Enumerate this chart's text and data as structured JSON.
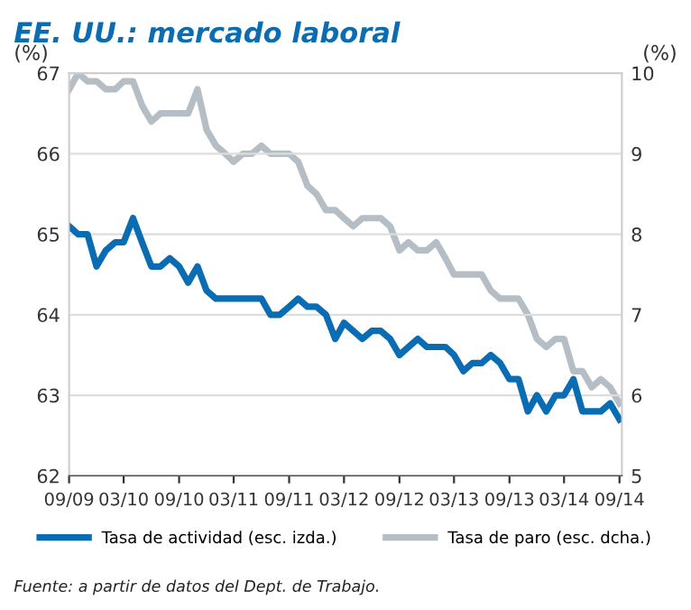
{
  "chart_data": {
    "type": "line",
    "title": "EE. UU.: mercado laboral",
    "ylabel": "(%)",
    "y2label": "(%)",
    "annotations": [
      "Fuente: a partir de datos del Dept. de Trabajo."
    ],
    "x": [
      "2009-09",
      "2009-10",
      "2009-11",
      "2009-12",
      "2010-01",
      "2010-02",
      "2010-03",
      "2010-04",
      "2010-05",
      "2010-06",
      "2010-07",
      "2010-08",
      "2010-09",
      "2010-10",
      "2010-11",
      "2010-12",
      "2011-01",
      "2011-02",
      "2011-03",
      "2011-04",
      "2011-05",
      "2011-06",
      "2011-07",
      "2011-08",
      "2011-09",
      "2011-10",
      "2011-11",
      "2011-12",
      "2012-01",
      "2012-02",
      "2012-03",
      "2012-04",
      "2012-05",
      "2012-06",
      "2012-07",
      "2012-08",
      "2012-09",
      "2012-10",
      "2012-11",
      "2012-12",
      "2013-01",
      "2013-02",
      "2013-03",
      "2013-04",
      "2013-05",
      "2013-06",
      "2013-07",
      "2013-08",
      "2013-09",
      "2013-10",
      "2013-11",
      "2013-12",
      "2014-01",
      "2014-02",
      "2014-03",
      "2014-04",
      "2014-05",
      "2014-06",
      "2014-07",
      "2014-08",
      "2014-09"
    ],
    "series": [
      {
        "name": "Tasa de actividad (esc. izda.)",
        "color": "#0a6db3",
        "values": [
          65.1,
          65.0,
          65.0,
          64.6,
          64.8,
          64.9,
          64.9,
          65.2,
          64.9,
          64.6,
          64.6,
          64.7,
          64.6,
          64.4,
          64.6,
          64.3,
          64.2,
          64.2,
          64.2,
          64.2,
          64.2,
          64.2,
          64.0,
          64.0,
          64.1,
          64.2,
          64.1,
          64.1,
          64.0,
          63.7,
          63.9,
          63.8,
          63.7,
          63.8,
          63.8,
          63.7,
          63.5,
          63.6,
          63.7,
          63.6,
          63.6,
          63.6,
          63.5,
          63.3,
          63.4,
          63.4,
          63.5,
          63.4,
          63.2,
          63.2,
          62.8,
          63.0,
          62.8,
          63.0,
          63.0,
          63.2,
          62.8,
          62.8,
          62.8,
          62.9,
          62.7
        ]
      },
      {
        "name": "Tasa de paro (esc. dcha.)",
        "color": "#b4bec4",
        "axis": "y2",
        "values": [
          9.8,
          10.0,
          9.9,
          9.9,
          9.8,
          9.8,
          9.9,
          9.9,
          9.6,
          9.4,
          9.5,
          9.5,
          9.5,
          9.5,
          9.8,
          9.3,
          9.1,
          9.0,
          8.9,
          9.0,
          9.0,
          9.1,
          9.0,
          9.0,
          9.0,
          8.9,
          8.6,
          8.5,
          8.3,
          8.3,
          8.2,
          8.1,
          8.2,
          8.2,
          8.2,
          8.1,
          7.8,
          7.9,
          7.8,
          7.8,
          7.9,
          7.7,
          7.5,
          7.5,
          7.5,
          7.5,
          7.3,
          7.2,
          7.2,
          7.2,
          7.0,
          6.7,
          6.6,
          6.7,
          6.7,
          6.3,
          6.3,
          6.1,
          6.2,
          6.1,
          5.9
        ]
      }
    ],
    "xlim": [
      "2009-09",
      "2014-09"
    ],
    "xticks": [
      {
        "value": "2009-09",
        "label": "09/09"
      },
      {
        "value": "2010-03",
        "label": "03/10"
      },
      {
        "value": "2010-09",
        "label": "09/10"
      },
      {
        "value": "2011-03",
        "label": "03/11"
      },
      {
        "value": "2011-09",
        "label": "09/11"
      },
      {
        "value": "2012-03",
        "label": "03/12"
      },
      {
        "value": "2012-09",
        "label": "09/12"
      },
      {
        "value": "2013-03",
        "label": "03/13"
      },
      {
        "value": "2013-09",
        "label": "09/13"
      },
      {
        "value": "2014-03",
        "label": "03/14"
      },
      {
        "value": "2014-09",
        "label": "09/14"
      }
    ],
    "ylim": [
      62,
      67
    ],
    "yticks": [
      62,
      63,
      64,
      65,
      66,
      67
    ],
    "y2lim": [
      5,
      10
    ],
    "y2ticks": [
      5,
      6,
      7,
      8,
      9,
      10
    ],
    "grid": "y",
    "legend": "bottom",
    "marker": "none",
    "line_style": "solid"
  }
}
